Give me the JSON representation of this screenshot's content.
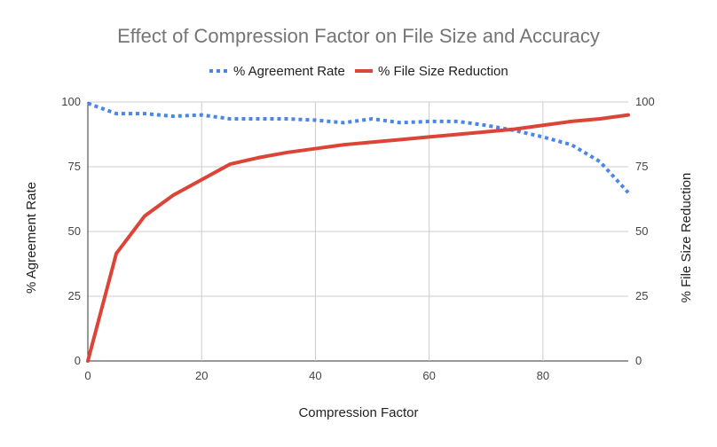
{
  "chart_data": {
    "type": "line",
    "title": "Effect of Compression Factor on File Size and Accuracy",
    "xlabel": "Compression Factor",
    "ylabel_left": "% Agreement Rate",
    "ylabel_right": "% File Size Reduction",
    "xlim": [
      0,
      95
    ],
    "ylim": [
      0,
      100
    ],
    "x_ticks": [
      "0",
      "20",
      "40",
      "60",
      "80"
    ],
    "y_ticks": [
      "0",
      "25",
      "50",
      "75",
      "100"
    ],
    "grid": true,
    "legend_position": "top",
    "series": [
      {
        "name": "% Agreement Rate",
        "axis": "left",
        "style": "dotted",
        "color": "#4a86e8",
        "x": [
          0,
          5,
          10,
          15,
          20,
          25,
          30,
          35,
          40,
          45,
          50,
          55,
          60,
          65,
          70,
          75,
          80,
          85,
          90,
          95
        ],
        "values": [
          99.5,
          95.5,
          95.5,
          94.5,
          95,
          93.5,
          93.5,
          93.5,
          93,
          92,
          93.5,
          92,
          92.5,
          92.5,
          91,
          89,
          86.5,
          83.5,
          77,
          65
        ]
      },
      {
        "name": "% File Size Reduction",
        "axis": "right",
        "style": "solid",
        "color": "#db4437",
        "x": [
          0,
          5,
          10,
          15,
          20,
          25,
          30,
          35,
          40,
          45,
          50,
          55,
          60,
          65,
          70,
          75,
          80,
          85,
          90,
          95
        ],
        "values": [
          0,
          41.5,
          56,
          64,
          70,
          76,
          78.5,
          80.5,
          82,
          83.5,
          84.5,
          85.5,
          86.5,
          87.5,
          88.5,
          89.5,
          91,
          92.5,
          93.5,
          95
        ]
      }
    ]
  }
}
